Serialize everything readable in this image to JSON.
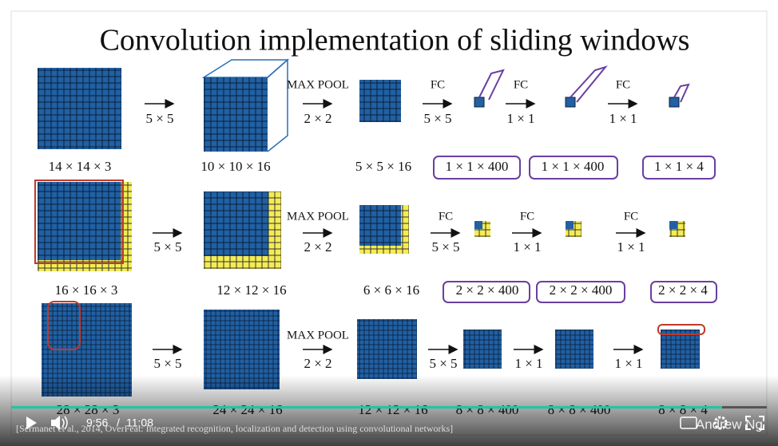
{
  "slide": {
    "title": "Convolution implementation of sliding windows",
    "rows": [
      {
        "volumes": [
          "14 × 14 × 3",
          "10 × 10 × 16",
          "5 × 5 × 16",
          "1 × 1 × 400",
          "1 × 1 × 400",
          "1 × 1 × 4"
        ],
        "operations": [
          {
            "size": "5 × 5"
          },
          {
            "name": "MAX POOL",
            "size": "2 × 2"
          },
          {
            "name": "FC",
            "size": "5 × 5"
          },
          {
            "name": "FC",
            "size": "1 × 1"
          },
          {
            "name": "FC",
            "size": "1 × 1"
          }
        ]
      },
      {
        "volumes": [
          "16 × 16 × 3",
          "12 × 12 × 16",
          "6 × 6 × 16",
          "2 × 2 × 400",
          "2 × 2 × 400",
          "2 × 2 × 4"
        ],
        "operations": [
          {
            "size": "5 × 5"
          },
          {
            "name": "MAX POOL",
            "size": "2 × 2"
          },
          {
            "name": "FC",
            "size": "5 × 5"
          },
          {
            "name": "FC",
            "size": "1 × 1"
          },
          {
            "name": "FC",
            "size": "1 × 1"
          }
        ]
      },
      {
        "volumes": [
          "28 × 28 × 3",
          "24 × 24 × 16",
          "12 × 12 × 16",
          "8 × 8 × 400",
          "8 × 8 × 400",
          "8 × 8 × 4"
        ],
        "operations": [
          {
            "size": "5 × 5"
          },
          {
            "name": "MAX POOL",
            "size": "2 × 2"
          },
          {
            "size": "5 × 5"
          },
          {
            "size": "1 × 1"
          },
          {
            "size": "1 × 1"
          }
        ]
      }
    ],
    "citation": "[Sermanet et al., 2014, OverFeat: Integrated recognition, localization and detection using convolutional networks]",
    "author": "Andrew Ng"
  },
  "player": {
    "current_time": "9:56",
    "separator": "/",
    "duration": "11:08"
  }
}
